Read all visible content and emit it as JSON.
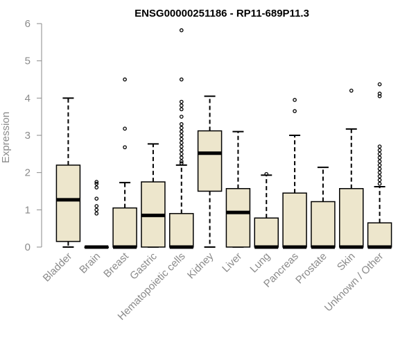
{
  "chart_data": {
    "type": "box",
    "title": "ENSG00000251186 - RP11-689P11.3",
    "ylabel": "Expression",
    "xlabel": "",
    "ylim": [
      0,
      6
    ],
    "yticks": [
      "0",
      "1",
      "2",
      "3",
      "4",
      "5",
      "6"
    ],
    "box_fill": "#ede6cc",
    "grid": false,
    "categories": [
      "Bladder",
      "Brain",
      "Breast",
      "Gastric",
      "Hematopoietic cells",
      "Kidney",
      "Liver",
      "Lung",
      "Pancreas",
      "Prostate",
      "Skin",
      "Unknown / Other"
    ],
    "boxes": [
      {
        "min": 0.0,
        "q1": 0.15,
        "median": 1.27,
        "q3": 2.2,
        "max": 4.0,
        "outliers": []
      },
      {
        "min": 0.0,
        "q1": 0.0,
        "median": 0.0,
        "q3": 0.0,
        "max": 0.0,
        "outliers": [
          0.9,
          1.0,
          1.1,
          1.3,
          1.6,
          1.7,
          1.75
        ]
      },
      {
        "min": 0.0,
        "q1": 0.0,
        "median": 0.0,
        "q3": 1.05,
        "max": 1.73,
        "outliers": [
          2.68,
          3.18,
          4.5
        ]
      },
      {
        "min": 0.0,
        "q1": 0.0,
        "median": 0.85,
        "q3": 1.75,
        "max": 2.77,
        "outliers": []
      },
      {
        "min": 0.0,
        "q1": 0.0,
        "median": 0.0,
        "q3": 0.9,
        "max": 2.2,
        "outliers": [
          2.25,
          2.3,
          2.4,
          2.5,
          2.6,
          2.7,
          2.8,
          2.9,
          3.0,
          3.1,
          3.2,
          3.3,
          3.5,
          3.7,
          3.8,
          3.9,
          4.5,
          5.82
        ]
      },
      {
        "min": 0.0,
        "q1": 1.5,
        "median": 2.52,
        "q3": 3.12,
        "max": 4.05,
        "outliers": []
      },
      {
        "min": 0.0,
        "q1": 0.0,
        "median": 0.93,
        "q3": 1.57,
        "max": 3.1,
        "outliers": []
      },
      {
        "min": 0.0,
        "q1": 0.0,
        "median": 0.0,
        "q3": 0.78,
        "max": 1.93,
        "outliers": [
          1.96
        ]
      },
      {
        "min": 0.0,
        "q1": 0.0,
        "median": 0.0,
        "q3": 1.45,
        "max": 3.0,
        "outliers": [
          3.65,
          3.95
        ]
      },
      {
        "min": 0.0,
        "q1": 0.0,
        "median": 0.0,
        "q3": 1.22,
        "max": 2.14,
        "outliers": []
      },
      {
        "min": 0.0,
        "q1": 0.0,
        "median": 0.0,
        "q3": 1.57,
        "max": 3.17,
        "outliers": [
          4.2
        ]
      },
      {
        "min": 0.0,
        "q1": 0.0,
        "median": 0.0,
        "q3": 0.65,
        "max": 1.62,
        "outliers": [
          1.7,
          1.8,
          1.9,
          2.0,
          2.1,
          2.2,
          2.3,
          2.4,
          2.5,
          2.6,
          2.7,
          4.05,
          4.12,
          4.37
        ]
      }
    ]
  }
}
